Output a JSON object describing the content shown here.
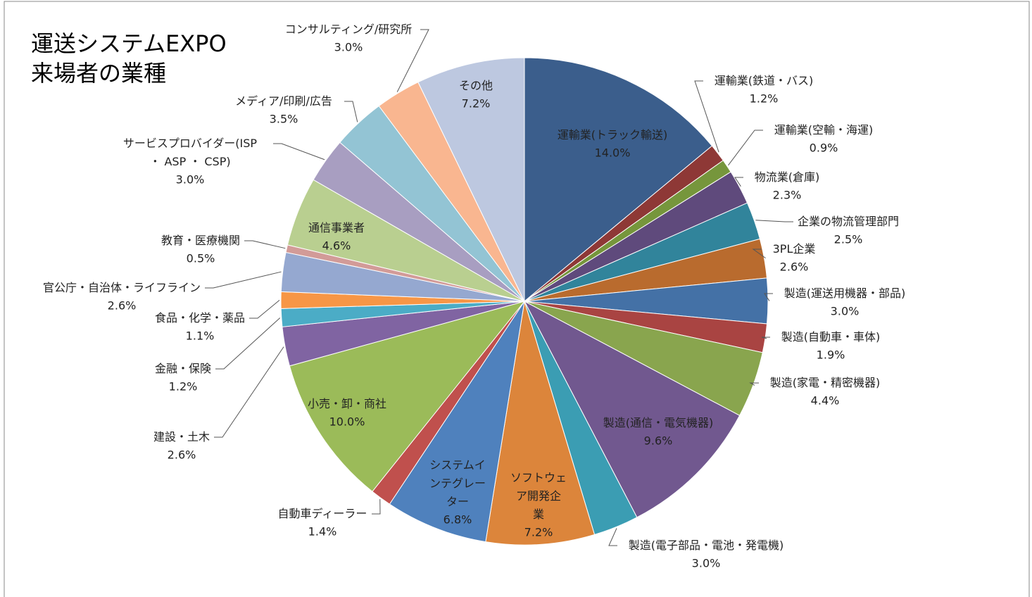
{
  "chart_data": {
    "type": "pie",
    "title": "運送システムEXPO\n来場者の業種",
    "categories": [
      "運輸業(トラック輸送)",
      "運輸業(鉄道・バス)",
      "運輸業(空輸・海運)",
      "物流業(倉庫)",
      "企業の物流管理部門",
      "3PL企業",
      "製造(運送用機器・部品)",
      "製造(自動車・車体)",
      "製造(家電・精密機器)",
      "製造(通信・電気機器)",
      "製造(電子部品・電池・発電機)",
      "ソフトウェ\nア開発企\n業",
      "システムイ\nンテグレー\nター",
      "自動車ディーラー",
      "小売・卸・商社",
      "建設・土木",
      "金融・保険",
      "食品・化学・薬品",
      "官公庁・自治体・ライフライン",
      "教育・医療機関",
      "通信事業者",
      "サービスプロバイダー(ISP\n・ ASP ・ CSP)",
      "メディア/印刷/広告",
      "コンサルティング/研究所",
      "その他"
    ],
    "values": [
      14.0,
      1.2,
      0.9,
      2.3,
      2.5,
      2.6,
      3.0,
      1.9,
      4.4,
      9.6,
      3.0,
      7.2,
      6.8,
      1.4,
      10.0,
      2.6,
      1.2,
      1.1,
      2.6,
      0.5,
      4.6,
      3.0,
      3.5,
      3.0,
      7.2
    ],
    "value_labels": [
      "14.0%",
      "1.2%",
      "0.9%",
      "2.3%",
      "2.5%",
      "2.6%",
      "3.0%",
      "1.9%",
      "4.4%",
      "9.6%",
      "3.0%",
      "7.2%",
      "6.8%",
      "1.4%",
      "10.0%",
      "2.6%",
      "1.2%",
      "1.1%",
      "2.6%",
      "0.5%",
      "4.6%",
      "3.0%",
      "3.5%",
      "3.0%",
      "7.2%"
    ],
    "colors": [
      "#3b5e8c",
      "#8e3836",
      "#76963c",
      "#5f4a7c",
      "#31849b",
      "#b96b2e",
      "#4471a6",
      "#a94442",
      "#89a54e",
      "#71588f",
      "#3b9db3",
      "#dc853b",
      "#4f81bd",
      "#c0504d",
      "#9bbb59",
      "#8064a2",
      "#4bacc6",
      "#f79646",
      "#95a8d0",
      "#d29b98",
      "#b9cf90",
      "#a89ec1",
      "#93c4d4",
      "#f9b690",
      "#bdc8e0"
    ]
  }
}
